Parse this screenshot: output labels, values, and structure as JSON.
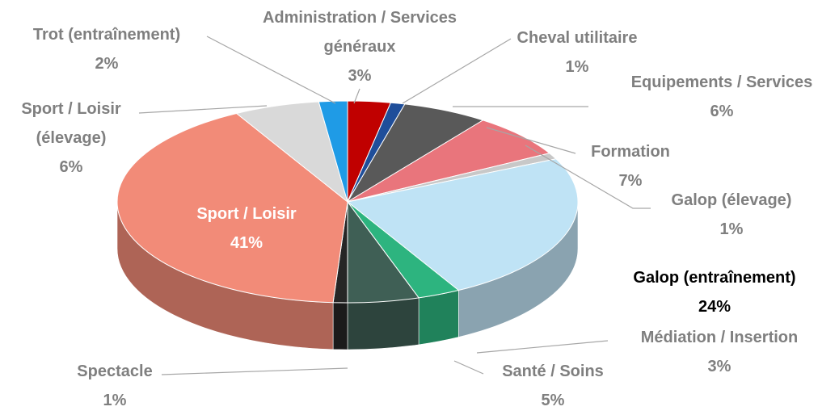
{
  "chart_data": {
    "type": "pie",
    "categories": [
      "Administration / Services généraux",
      "Cheval utilitaire",
      "Equipements / Services",
      "Formation",
      "Galop (élevage)",
      "Galop (entraînement)",
      "Médiation / Insertion",
      "Santé / Soins",
      "Spectacle",
      "Sport / Loisir",
      "Sport / Loisir (élevage)",
      "Trot (entraînement)"
    ],
    "values": [
      3,
      1,
      6,
      7,
      1,
      24,
      3,
      5,
      1,
      41,
      6,
      2
    ],
    "value_labels": [
      "3%",
      "1%",
      "6%",
      "7%",
      "1%",
      "24%",
      "3%",
      "5%",
      "1%",
      "41%",
      "6%",
      "2%"
    ],
    "colors": [
      "#c00000",
      "#1f4e9a",
      "#595959",
      "#e9757c",
      "#c8c8c8",
      "#bfe3f5",
      "#2db47f",
      "#3f5f55",
      "#262626",
      "#f28b78",
      "#d9d9d9",
      "#1f9be6"
    ]
  }
}
